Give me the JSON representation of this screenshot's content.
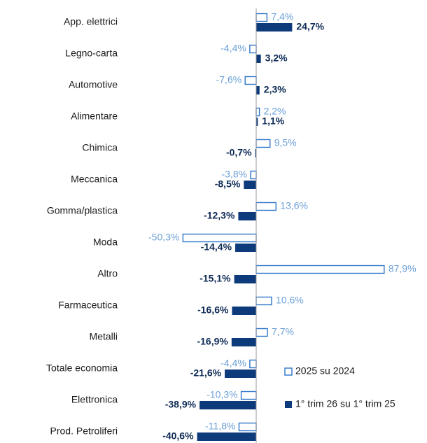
{
  "chart_data": {
    "type": "bar",
    "orientation": "horizontal",
    "categories": [
      "App. elettrici",
      "Legno-carta",
      "Automotive",
      "Alimentare",
      "Chimica",
      "Meccanica",
      "Gomma/plastica",
      "Moda",
      "Altro",
      "Farmaceutica",
      "Metalli",
      "Totale economia",
      "Elettronica",
      "Prod. Petroliferi"
    ],
    "series": [
      {
        "name": "2025 su 2024",
        "color": "#2e75c9",
        "style": "outline",
        "values": [
          7.4,
          -4.4,
          -7.6,
          2.2,
          9.5,
          -3.8,
          13.6,
          -50.3,
          87.9,
          10.6,
          7.7,
          -4.4,
          -10.3,
          -11.8
        ],
        "value_labels": [
          "7,4%",
          "-4,4%",
          "-7,6%",
          "2,2%",
          "9,5%",
          "-3,8%",
          "13,6%",
          "-50,3%",
          "87,9%",
          "10,6%",
          "7,7%",
          "-4,4%",
          "-10,3%",
          "-11,8%"
        ]
      },
      {
        "name": "1° trim 26 su 1° trim 25",
        "color": "#0d3a7a",
        "style": "filled",
        "values": [
          24.7,
          3.2,
          2.3,
          1.1,
          -0.7,
          -8.5,
          -12.3,
          -14.4,
          -15.1,
          -16.6,
          -16.9,
          -21.6,
          -38.9,
          -40.6
        ],
        "value_labels": [
          "24,7%",
          "3,2%",
          "2,3%",
          "1,1%",
          "-0,7%",
          "-8,5%",
          "-12,3%",
          "-14,4%",
          "-15,1%",
          "-16,6%",
          "-16,9%",
          "-21,6%",
          "-38,9%",
          "-40,6%"
        ]
      }
    ]
  }
}
